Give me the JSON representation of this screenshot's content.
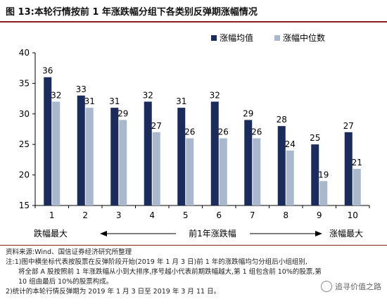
{
  "title": "图 13:本轮行情按前 1 年涨跌幅分组下各类别反弹期涨幅情况",
  "chart_data": {
    "type": "bar",
    "categories": [
      "1",
      "2",
      "3",
      "4",
      "5",
      "6",
      "7",
      "8",
      "9",
      "10"
    ],
    "series": [
      {
        "name": "涨幅均值",
        "values": [
          36,
          33,
          31,
          32,
          31,
          32,
          29,
          28,
          25,
          27
        ],
        "color": "#1a2b5c"
      },
      {
        "name": "涨幅中位数",
        "values": [
          32,
          31,
          29,
          27,
          26,
          26,
          26,
          24,
          19,
          21
        ],
        "color": "#a9b8cc"
      }
    ],
    "ylim": [
      15,
      40
    ],
    "yticks": [
      15,
      20,
      25,
      30,
      35,
      40
    ],
    "legend_position": "top-right",
    "grid": false,
    "axis_annotations": {
      "left": "跌幅最大",
      "center": "前1年涨跌幅",
      "right": "涨幅最大"
    }
  },
  "notes": {
    "source": "资料来源:Wind、国信证券经济研究所整理",
    "note1_a": "注:1)图中横坐标代表按股票在反弹阶段开始(2019 年 1 月 3 日)前 1 年的涨跌幅均匀分组后小组组别,",
    "note1_b": "将全部 A 股按照前 1 年涨跌幅从小到大排序,序号越小代表前期跌幅越大,第 1 组包含前 10%的股票,第",
    "note1_c": "10 组由最后 10%的股票构成。",
    "note2": "2)统计的本轮行情反弹期为 2019 年 1 月 3 日至 2019 年 3 月 11 日。"
  },
  "watermark": "追寻价值之路"
}
